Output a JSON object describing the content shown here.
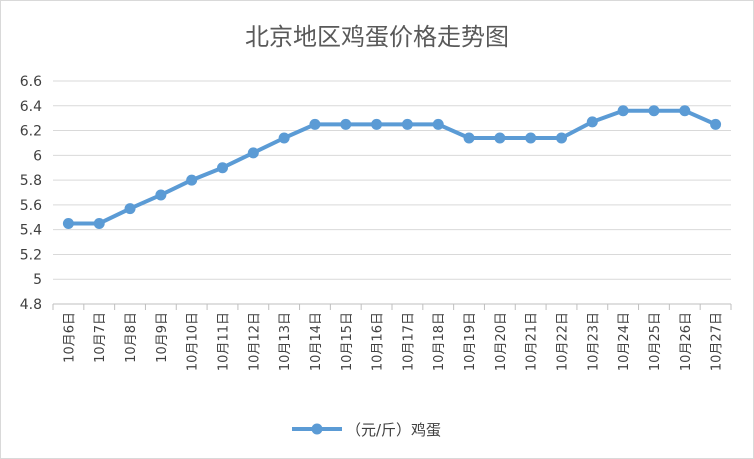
{
  "chart_data": {
    "type": "line",
    "title": "北京地区鸡蛋价格走势图",
    "xlabel": "",
    "ylabel": "",
    "categories": [
      "10月6日",
      "10月7日",
      "10月8日",
      "10月9日",
      "10月10日",
      "10月11日",
      "10月12日",
      "10月13日",
      "10月14日",
      "10月15日",
      "10月16日",
      "10月17日",
      "10月18日",
      "10月19日",
      "10月20日",
      "10月21日",
      "10月22日",
      "10月23日",
      "10月24日",
      "10月25日",
      "10月26日",
      "10月27日"
    ],
    "series": [
      {
        "name": "（元/斤）鸡蛋",
        "color": "#5b9bd5",
        "values": [
          5.45,
          5.45,
          5.57,
          5.68,
          5.8,
          5.9,
          6.02,
          6.14,
          6.25,
          6.25,
          6.25,
          6.25,
          6.25,
          6.14,
          6.14,
          6.14,
          6.14,
          6.27,
          6.36,
          6.36,
          6.36,
          6.25
        ]
      }
    ],
    "ylim": [
      4.8,
      6.6
    ],
    "yticks": [
      "4.8",
      "5",
      "5.2",
      "5.4",
      "5.6",
      "5.8",
      "6",
      "6.2",
      "6.4",
      "6.6"
    ],
    "grid": true,
    "legend_position": "bottom"
  }
}
